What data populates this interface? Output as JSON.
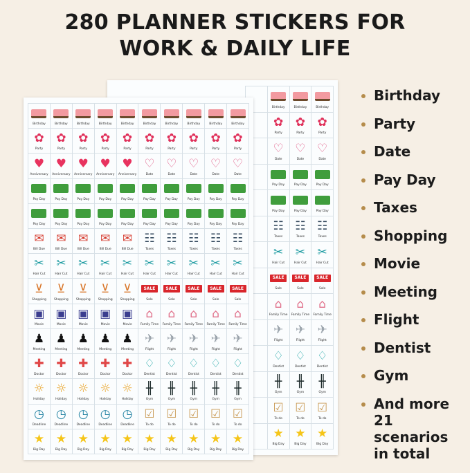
{
  "title": {
    "line1": "280 PLANNER STICKERS FOR",
    "line2": "WORK & DAILY LIFE"
  },
  "colors": {
    "background": "#f6efe5",
    "bullet": "#b58c4b"
  },
  "sheet_rows": [
    {
      "left": {
        "label": "Birthday",
        "icon": "cake-icon"
      },
      "right": {
        "label": "Birthday",
        "icon": "cake-icon"
      }
    },
    {
      "left": {
        "label": "Party",
        "icon": "party-icon"
      },
      "right": {
        "label": "Party",
        "icon": "party-icon"
      }
    },
    {
      "left": {
        "label": "Anniversary",
        "icon": "hearts-icon"
      },
      "right": {
        "label": "Date",
        "icon": "wine-glasses-icon"
      }
    },
    {
      "left": {
        "label": "Pay Day",
        "icon": "money-icon"
      },
      "right": {
        "label": "Pay Day",
        "icon": "money-icon"
      }
    },
    {
      "left": {
        "label": "Pay Day",
        "icon": "money-icon"
      },
      "right": {
        "label": "Pay Day",
        "icon": "money-icon"
      }
    },
    {
      "left": {
        "label": "Bill Due",
        "icon": "envelope-icon"
      },
      "right": {
        "label": "Taxes",
        "icon": "calculator-icon"
      }
    },
    {
      "left": {
        "label": "Hair Cut",
        "icon": "scissors-icon"
      },
      "right": {
        "label": "Hair Cut",
        "icon": "scissors-icon"
      }
    },
    {
      "left": {
        "label": "Shopping",
        "icon": "cart-icon"
      },
      "right": {
        "label": "Sale",
        "icon": "sale-tag-icon"
      }
    },
    {
      "left": {
        "label": "Movie",
        "icon": "film-camera-icon"
      },
      "right": {
        "label": "Family Time",
        "icon": "family-house-icon"
      }
    },
    {
      "left": {
        "label": "Meeting",
        "icon": "meeting-icon"
      },
      "right": {
        "label": "Flight",
        "icon": "airplane-icon"
      }
    },
    {
      "left": {
        "label": "Doctor",
        "icon": "medical-kit-icon"
      },
      "right": {
        "label": "Dentist",
        "icon": "tooth-icon"
      }
    },
    {
      "left": {
        "label": "Holiday",
        "icon": "palm-island-icon"
      },
      "right": {
        "label": "Gym",
        "icon": "dumbbell-icon"
      }
    },
    {
      "left": {
        "label": "Deadline",
        "icon": "alarm-clock-icon"
      },
      "right": {
        "label": "To do",
        "icon": "clipboard-icon"
      }
    },
    {
      "left": {
        "label": "Big Day",
        "icon": "star-icon"
      },
      "right": {
        "label": "Big Day",
        "icon": "star-icon"
      }
    }
  ],
  "sale_text": "SALE",
  "list": [
    "Birthday",
    "Party",
    "Date",
    "Pay Day",
    "Taxes",
    "Shopping",
    "Movie",
    "Meeting",
    "Flight",
    "Dentist",
    "Gym",
    "And more 21 scenarios in total"
  ]
}
